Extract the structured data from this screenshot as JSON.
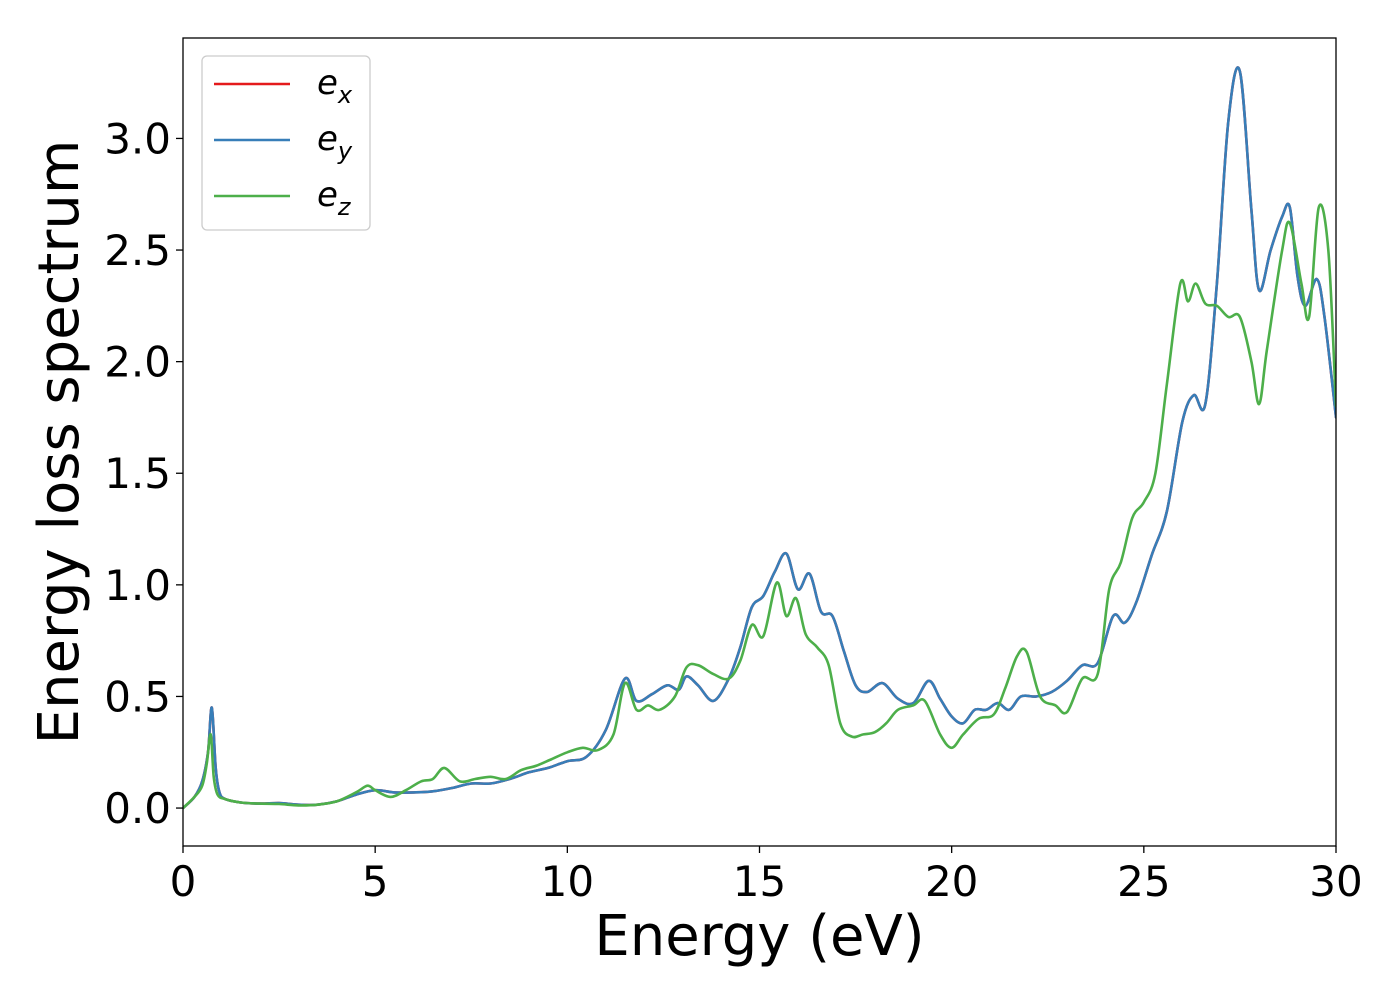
{
  "chart_data": {
    "type": "line",
    "title": "",
    "xlabel": "Energy (eV)",
    "ylabel": "Energy loss spectrum",
    "xlim": [
      0,
      30
    ],
    "ylim": [
      -0.17,
      3.45
    ],
    "xticks": [
      0,
      5,
      10,
      15,
      20,
      25,
      30
    ],
    "xtick_labels": [
      "0",
      "5",
      "10",
      "15",
      "20",
      "25",
      "30"
    ],
    "yticks": [
      0.0,
      0.5,
      1.0,
      1.5,
      2.0,
      2.5,
      3.0
    ],
    "ytick_labels": [
      "0.0",
      "0.5",
      "1.0",
      "1.5",
      "2.0",
      "2.5",
      "3.0"
    ],
    "grid": false,
    "legend": {
      "placement": "top-left",
      "entries": [
        {
          "base": "e",
          "sub": "x",
          "color": "#e41a1c"
        },
        {
          "base": "e",
          "sub": "y",
          "color": "#377eb8"
        },
        {
          "base": "e",
          "sub": "z",
          "color": "#4daf4a"
        }
      ]
    },
    "series": [
      {
        "name": "e_x",
        "color": "#e41a1c",
        "x": [
          0,
          0.3,
          0.5,
          0.65,
          0.75,
          0.85,
          0.95,
          1.1,
          1.5,
          2.0,
          2.5,
          3.0,
          3.5,
          4.0,
          4.5,
          5.0,
          5.5,
          6.0,
          6.5,
          7.0,
          7.5,
          8.0,
          8.5,
          9.0,
          9.5,
          10.0,
          10.5,
          11.0,
          11.5,
          11.8,
          12.2,
          12.6,
          12.9,
          13.1,
          13.4,
          13.8,
          14.2,
          14.5,
          14.8,
          15.1,
          15.4,
          15.7,
          16.0,
          16.3,
          16.6,
          16.9,
          17.2,
          17.5,
          17.8,
          18.2,
          18.6,
          19.0,
          19.4,
          19.7,
          20.0,
          20.3,
          20.6,
          20.9,
          21.2,
          21.5,
          21.8,
          22.2,
          22.6,
          23.0,
          23.4,
          23.8,
          24.2,
          24.5,
          24.8,
          25.2,
          25.6,
          26.0,
          26.3,
          26.6,
          26.9,
          27.2,
          27.5,
          27.8,
          28.0,
          28.3,
          28.6,
          28.8,
          29.0,
          29.2,
          29.5,
          29.7,
          30.0
        ],
        "y": [
          0.0,
          0.05,
          0.12,
          0.25,
          0.45,
          0.18,
          0.07,
          0.04,
          0.025,
          0.02,
          0.022,
          0.015,
          0.015,
          0.03,
          0.06,
          0.08,
          0.07,
          0.07,
          0.075,
          0.09,
          0.11,
          0.11,
          0.13,
          0.16,
          0.18,
          0.21,
          0.23,
          0.35,
          0.58,
          0.48,
          0.51,
          0.55,
          0.53,
          0.59,
          0.55,
          0.48,
          0.58,
          0.72,
          0.9,
          0.95,
          1.06,
          1.14,
          0.98,
          1.05,
          0.88,
          0.86,
          0.7,
          0.55,
          0.52,
          0.56,
          0.49,
          0.47,
          0.57,
          0.49,
          0.41,
          0.38,
          0.44,
          0.44,
          0.47,
          0.44,
          0.5,
          0.5,
          0.52,
          0.57,
          0.64,
          0.65,
          0.86,
          0.83,
          0.92,
          1.13,
          1.33,
          1.73,
          1.85,
          1.81,
          2.35,
          3.08,
          3.3,
          2.68,
          2.32,
          2.5,
          2.65,
          2.69,
          2.38,
          2.25,
          2.37,
          2.2,
          1.75
        ]
      },
      {
        "name": "e_y",
        "color": "#377eb8",
        "x": [
          0,
          0.3,
          0.5,
          0.65,
          0.75,
          0.85,
          0.95,
          1.1,
          1.5,
          2.0,
          2.5,
          3.0,
          3.5,
          4.0,
          4.5,
          5.0,
          5.5,
          6.0,
          6.5,
          7.0,
          7.5,
          8.0,
          8.5,
          9.0,
          9.5,
          10.0,
          10.5,
          11.0,
          11.5,
          11.8,
          12.2,
          12.6,
          12.9,
          13.1,
          13.4,
          13.8,
          14.2,
          14.5,
          14.8,
          15.1,
          15.4,
          15.7,
          16.0,
          16.3,
          16.6,
          16.9,
          17.2,
          17.5,
          17.8,
          18.2,
          18.6,
          19.0,
          19.4,
          19.7,
          20.0,
          20.3,
          20.6,
          20.9,
          21.2,
          21.5,
          21.8,
          22.2,
          22.6,
          23.0,
          23.4,
          23.8,
          24.2,
          24.5,
          24.8,
          25.2,
          25.6,
          26.0,
          26.3,
          26.6,
          26.9,
          27.2,
          27.5,
          27.8,
          28.0,
          28.3,
          28.6,
          28.8,
          29.0,
          29.2,
          29.5,
          29.7,
          30.0
        ],
        "y": [
          0.0,
          0.05,
          0.12,
          0.25,
          0.45,
          0.18,
          0.07,
          0.04,
          0.025,
          0.02,
          0.022,
          0.015,
          0.015,
          0.03,
          0.06,
          0.08,
          0.07,
          0.07,
          0.075,
          0.09,
          0.11,
          0.11,
          0.13,
          0.16,
          0.18,
          0.21,
          0.23,
          0.35,
          0.58,
          0.48,
          0.51,
          0.55,
          0.53,
          0.59,
          0.55,
          0.48,
          0.58,
          0.72,
          0.9,
          0.95,
          1.06,
          1.14,
          0.98,
          1.05,
          0.88,
          0.86,
          0.7,
          0.55,
          0.52,
          0.56,
          0.49,
          0.47,
          0.57,
          0.49,
          0.41,
          0.38,
          0.44,
          0.44,
          0.47,
          0.44,
          0.5,
          0.5,
          0.52,
          0.57,
          0.64,
          0.65,
          0.86,
          0.83,
          0.92,
          1.13,
          1.33,
          1.73,
          1.85,
          1.81,
          2.35,
          3.08,
          3.3,
          2.68,
          2.32,
          2.5,
          2.65,
          2.69,
          2.38,
          2.25,
          2.37,
          2.2,
          1.75
        ]
      },
      {
        "name": "e_z",
        "color": "#4daf4a",
        "x": [
          0,
          0.3,
          0.5,
          0.62,
          0.72,
          0.8,
          0.9,
          1.1,
          1.5,
          2.0,
          2.5,
          3.0,
          3.5,
          4.0,
          4.5,
          4.8,
          5.0,
          5.4,
          5.8,
          6.2,
          6.5,
          6.8,
          7.2,
          7.6,
          8.0,
          8.4,
          8.8,
          9.2,
          9.6,
          10.0,
          10.4,
          10.8,
          11.2,
          11.5,
          11.8,
          12.1,
          12.4,
          12.8,
          13.1,
          13.4,
          13.8,
          14.2,
          14.5,
          14.8,
          15.1,
          15.45,
          15.7,
          15.95,
          16.2,
          16.5,
          16.8,
          17.1,
          17.4,
          17.7,
          18.0,
          18.3,
          18.6,
          19.0,
          19.3,
          19.7,
          20.0,
          20.3,
          20.7,
          21.1,
          21.4,
          21.7,
          21.95,
          22.3,
          22.7,
          23.0,
          23.4,
          23.8,
          24.1,
          24.4,
          24.7,
          25.0,
          25.3,
          25.6,
          25.95,
          26.15,
          26.35,
          26.6,
          26.9,
          27.2,
          27.5,
          27.8,
          28.0,
          28.2,
          28.6,
          28.8,
          29.1,
          29.3,
          29.55,
          29.8,
          30.0
        ],
        "y": [
          0.0,
          0.05,
          0.1,
          0.2,
          0.33,
          0.14,
          0.06,
          0.04,
          0.025,
          0.02,
          0.018,
          0.012,
          0.015,
          0.03,
          0.07,
          0.1,
          0.08,
          0.05,
          0.08,
          0.12,
          0.13,
          0.18,
          0.12,
          0.13,
          0.14,
          0.13,
          0.17,
          0.19,
          0.22,
          0.25,
          0.27,
          0.26,
          0.33,
          0.56,
          0.44,
          0.46,
          0.44,
          0.5,
          0.63,
          0.64,
          0.6,
          0.58,
          0.66,
          0.82,
          0.77,
          1.01,
          0.86,
          0.94,
          0.78,
          0.72,
          0.64,
          0.38,
          0.32,
          0.33,
          0.34,
          0.38,
          0.44,
          0.46,
          0.48,
          0.33,
          0.27,
          0.33,
          0.4,
          0.42,
          0.54,
          0.68,
          0.7,
          0.5,
          0.46,
          0.43,
          0.58,
          0.6,
          0.98,
          1.1,
          1.3,
          1.37,
          1.5,
          1.9,
          2.35,
          2.27,
          2.35,
          2.26,
          2.25,
          2.2,
          2.2,
          2.0,
          1.81,
          2.05,
          2.5,
          2.62,
          2.35,
          2.2,
          2.69,
          2.5,
          1.8
        ]
      }
    ]
  }
}
